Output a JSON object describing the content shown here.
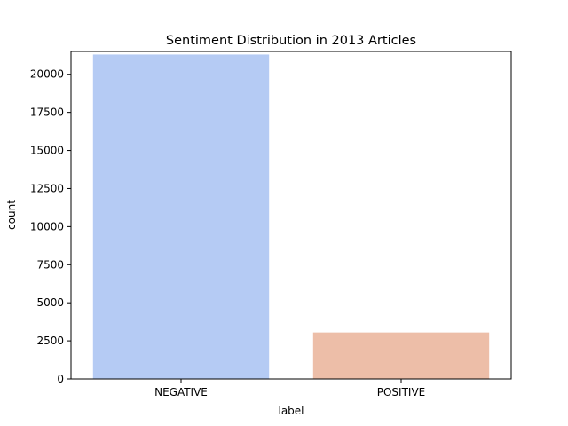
{
  "chart_data": {
    "type": "bar",
    "title": "Sentiment Distribution in 2013 Articles",
    "xlabel": "label",
    "ylabel": "count",
    "categories": [
      "NEGATIVE",
      "POSITIVE"
    ],
    "values": [
      21300,
      3050
    ],
    "colors": [
      "#b5cbf4",
      "#edbea8"
    ],
    "ylim": [
      0,
      21500
    ],
    "yticks": [
      0,
      2500,
      5000,
      7500,
      10000,
      12500,
      15000,
      17500,
      20000
    ],
    "grid": false,
    "legend": "none"
  }
}
